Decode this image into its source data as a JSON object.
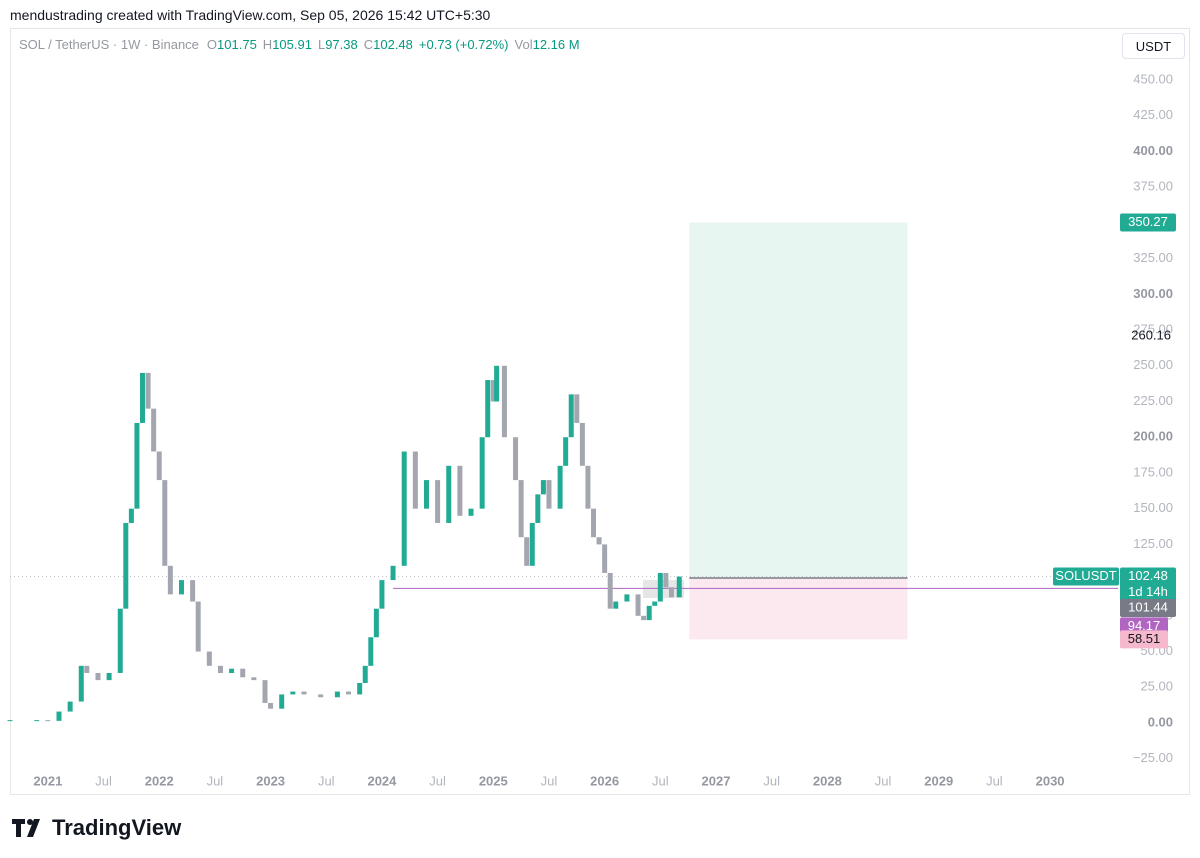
{
  "header": {
    "credit": "mendustrading created with TradingView.com, Sep 05, 2026 15:42 UTC+5:30"
  },
  "chart_data": {
    "type": "candlestick",
    "title": "SOL / TetherUS · 1W · Binance",
    "ohlc": [
      {
        "label": "O",
        "value": 101.75
      },
      {
        "label": "H",
        "value": 105.91
      },
      {
        "label": "L",
        "value": 97.38
      },
      {
        "label": "C",
        "value": 102.48
      }
    ],
    "change": "+0.73 (+0.72%)",
    "volume": {
      "label": "Vol",
      "value": "12.16 M"
    },
    "unit": "USDT",
    "up_color": "#22ab94",
    "down_color": "#a3a6af",
    "x": [
      2020.66,
      2020.9,
      2021.0,
      2021.1,
      2021.2,
      2021.3,
      2021.35,
      2021.45,
      2021.55,
      2021.65,
      2021.7,
      2021.75,
      2021.8,
      2021.85,
      2021.9,
      2021.95,
      2022.0,
      2022.05,
      2022.1,
      2022.2,
      2022.3,
      2022.35,
      2022.45,
      2022.55,
      2022.65,
      2022.75,
      2022.85,
      2022.95,
      2023.0,
      2023.1,
      2023.2,
      2023.3,
      2023.45,
      2023.6,
      2023.7,
      2023.8,
      2023.85,
      2023.9,
      2023.95,
      2024.0,
      2024.1,
      2024.2,
      2024.3,
      2024.4,
      2024.5,
      2024.6,
      2024.7,
      2024.8,
      2024.9,
      2024.95,
      2025.0,
      2025.03,
      2025.1,
      2025.2,
      2025.25,
      2025.3,
      2025.35,
      2025.4,
      2025.45,
      2025.5,
      2025.6,
      2025.65,
      2025.7,
      2025.75,
      2025.8,
      2025.85,
      2025.9,
      2025.95,
      2026.0,
      2026.05,
      2026.1,
      2026.2,
      2026.3,
      2026.35,
      2026.4,
      2026.45,
      2026.5,
      2026.55,
      2026.6,
      2026.67
    ],
    "values": [
      2,
      2,
      1.5,
      8,
      15,
      40,
      35,
      30,
      35,
      80,
      140,
      150,
      210,
      245,
      220,
      190,
      170,
      110,
      90,
      100,
      85,
      50,
      40,
      35,
      38,
      32,
      30,
      14,
      10,
      20,
      22,
      20,
      18,
      22,
      20,
      28,
      40,
      60,
      80,
      100,
      110,
      190,
      150,
      170,
      140,
      180,
      145,
      150,
      200,
      240,
      225,
      250,
      200,
      170,
      130,
      110,
      140,
      160,
      170,
      150,
      180,
      200,
      230,
      210,
      180,
      150,
      130,
      125,
      105,
      80,
      85,
      90,
      75,
      72,
      82,
      85,
      105,
      95,
      88,
      102.48
    ],
    "xlim": [
      2020.66,
      2030.61
    ],
    "xticks": [
      2021,
      {
        "value": 2021.5,
        "label": "Jul"
      },
      2022,
      {
        "value": 2022.5,
        "label": "Jul"
      },
      2023,
      {
        "value": 2023.5,
        "label": "Jul"
      },
      2024,
      {
        "value": 2024.5,
        "label": "Jul"
      },
      2025,
      {
        "value": 2025.5,
        "label": "Jul"
      },
      2026,
      {
        "value": 2026.5,
        "label": "Jul"
      },
      2027,
      {
        "value": 2027.5,
        "label": "Jul"
      },
      2028,
      {
        "value": 2028.5,
        "label": "Jul"
      },
      2029,
      {
        "value": 2029.5,
        "label": "Jul"
      },
      2030
    ],
    "ylim": [
      -35,
      485
    ],
    "yticks": [
      {
        "value": -25,
        "label": "−25.00"
      },
      {
        "value": 0,
        "label": "0.00"
      },
      {
        "value": 25,
        "label": "25.00"
      },
      {
        "value": 50,
        "label": "50.00"
      },
      {
        "value": 75,
        "label": "75.00"
      },
      {
        "value": 100,
        "label": "100.00"
      },
      {
        "value": 125,
        "label": "125.00"
      },
      {
        "value": 150,
        "label": "150.00"
      },
      {
        "value": 175,
        "label": "175.00"
      },
      {
        "value": 200,
        "label": "200.00"
      },
      {
        "value": 225,
        "label": "225.00"
      },
      {
        "value": 250,
        "label": "250.00"
      },
      {
        "value": 275,
        "label": "275.00"
      },
      {
        "value": 300,
        "label": "300.00"
      },
      {
        "value": 325,
        "label": "325.00"
      },
      {
        "value": 350,
        "label": "350.00"
      },
      {
        "value": 375,
        "label": "375.00"
      },
      {
        "value": 400,
        "label": "400.00"
      },
      {
        "value": 425,
        "label": "425.00"
      },
      {
        "value": 450,
        "label": "450.00"
      }
    ],
    "position": {
      "x_range": [
        2026.76,
        2028.72
      ],
      "target": 350.27,
      "entry": 101.44,
      "stop": 58.51,
      "profit_color": "#e8f6f2",
      "loss_color": "#fce8ef"
    },
    "level_line": {
      "value": 94.17,
      "from": 2024.1,
      "color": "#b065c0"
    },
    "high_label": 260.16,
    "price_tag": {
      "symbol": "SOLUSDT",
      "value": 102.48,
      "countdown": "1d 14h",
      "color": "#22ab94"
    }
  },
  "footer": {
    "brand": "TradingView"
  }
}
